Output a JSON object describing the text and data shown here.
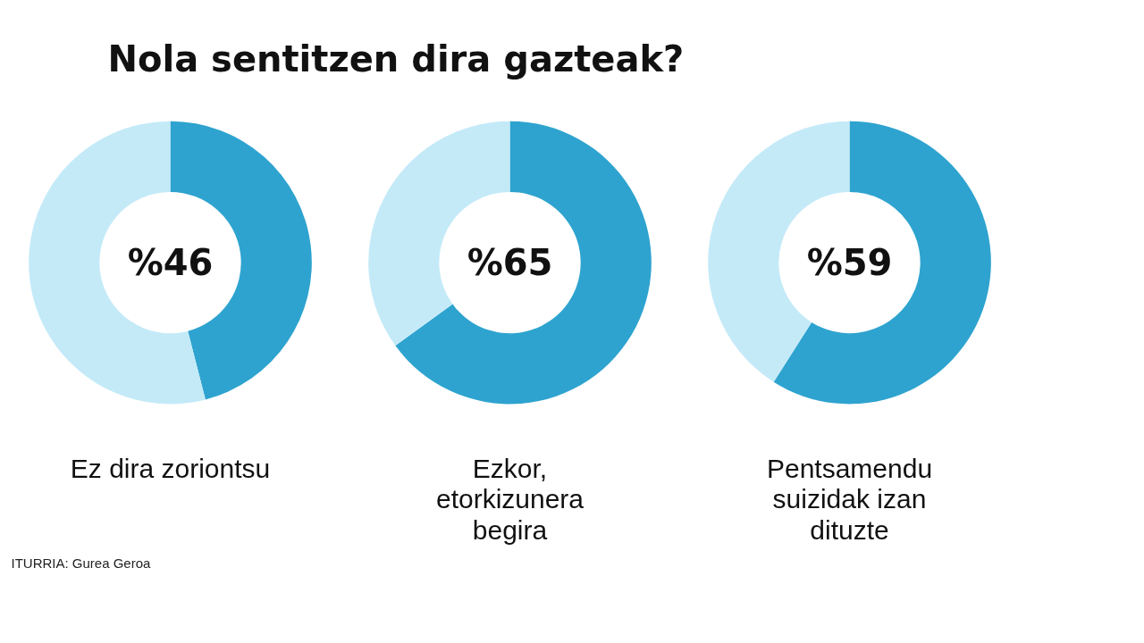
{
  "chart_data": [
    {
      "type": "other",
      "title": "Nola sentitzen dira gazteak?",
      "annotations": [
        "ITURRIA: Gurea Geroa"
      ]
    },
    {
      "type": "donut",
      "categories": [
        null,
        null
      ],
      "values": [
        46,
        54
      ],
      "colors": [
        "#2ea3cf",
        "#c4eaf8"
      ],
      "annotations": [
        "%46"
      ],
      "xlabel": "Ez dira zoriontsu"
    },
    {
      "type": "donut",
      "categories": [
        null,
        null
      ],
      "values": [
        65,
        35
      ],
      "colors": [
        "#2ea3cf",
        "#c4eaf8"
      ],
      "annotations": [
        "%65"
      ],
      "xlabel": "Ezkor,\netorkizunera\nbegira"
    },
    {
      "type": "donut",
      "categories": [
        null,
        null
      ],
      "values": [
        59,
        41
      ],
      "colors": [
        "#2ea3cf",
        "#c4eaf8"
      ],
      "annotations": [
        "%59"
      ],
      "xlabel": "Pentsamendu\nsuizidak izan\ndituzte"
    }
  ]
}
